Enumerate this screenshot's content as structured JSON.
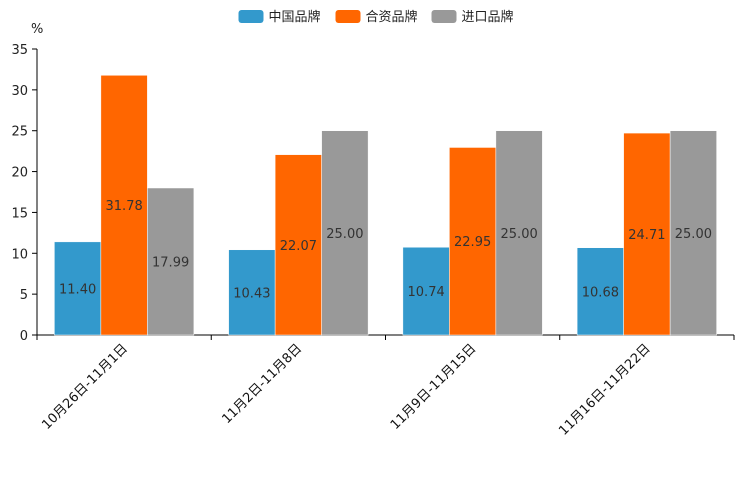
{
  "chart_data": {
    "type": "bar",
    "title": "",
    "xlabel": "",
    "ylabel": "%",
    "ylim": [
      0,
      35
    ],
    "yticks": [
      0,
      5,
      10,
      15,
      20,
      25,
      30,
      35
    ],
    "categories": [
      "10月26日-11月1日",
      "11月2日-11月8日",
      "11月9日-11月15日",
      "11月16日-11月22日"
    ],
    "series": [
      {
        "name": "中国品牌",
        "color": "#3399cc",
        "values": [
          11.4,
          10.43,
          10.74,
          10.68
        ],
        "labels": [
          "11.40",
          "10.43",
          "10.74",
          "10.68"
        ]
      },
      {
        "name": "合资品牌",
        "color": "#ff6600",
        "values": [
          31.78,
          22.07,
          22.95,
          24.71
        ],
        "labels": [
          "31.78",
          "22.07",
          "22.95",
          "24.71"
        ]
      },
      {
        "name": "进口品牌",
        "color": "#999999",
        "values": [
          17.99,
          25.0,
          25.0,
          25.0
        ],
        "labels": [
          "17.99",
          "25.00",
          "25.00",
          "25.00"
        ]
      }
    ],
    "legend_position": "top-center",
    "grid": false
  }
}
